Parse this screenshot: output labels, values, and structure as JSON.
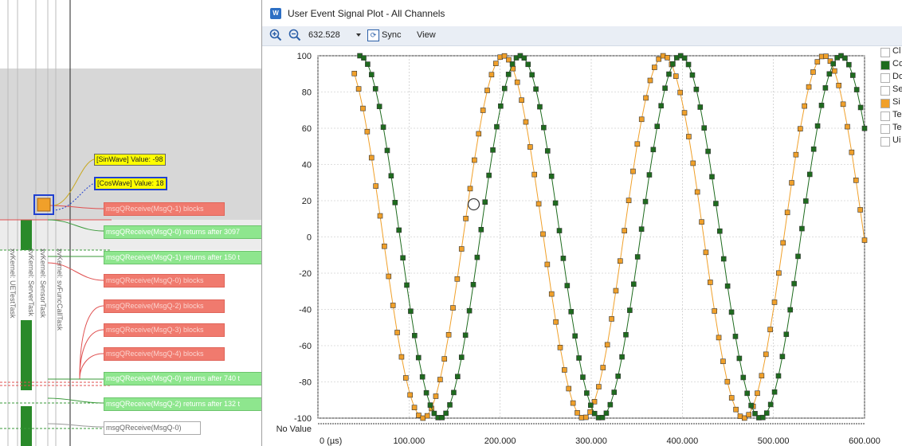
{
  "window": {
    "title": "User Event Signal Plot - All Channels",
    "icon": "window-app-icon"
  },
  "toolbar": {
    "zoom_value": "632.528",
    "sync_label": "Sync",
    "view_label": "View"
  },
  "legend": [
    {
      "label": "Cl",
      "color": "#ffffff"
    },
    {
      "label": "Co",
      "color": "#1e6b1e"
    },
    {
      "label": "Do",
      "color": "#ffffff"
    },
    {
      "label": "Se",
      "color": "#ffffff"
    },
    {
      "label": "Si",
      "color": "#f0a02a"
    },
    {
      "label": "Te",
      "color": "#ffffff"
    },
    {
      "label": "Te",
      "color": "#ffffff"
    },
    {
      "label": "Ui",
      "color": "#ffffff"
    }
  ],
  "timeline": {
    "task_labels": [
      "xvKernel: UETestTask",
      "xvKernel: ServerTask",
      "xvKernel: SensorTask",
      "xvKernel: svFuncCallTask"
    ],
    "value_labels": [
      "[SinWave] Value: -98",
      "[CosWave] Value: 18"
    ],
    "events": [
      {
        "text": "msgQReceive(MsgQ-1) blocks",
        "kind": "red"
      },
      {
        "text": "msgQReceive(MsgQ-0) returns after 3097",
        "kind": "green"
      },
      {
        "text": "msgQReceive(MsgQ-1) returns after 150 t",
        "kind": "green"
      },
      {
        "text": "msgQReceive(MsgQ-0) blocks",
        "kind": "red"
      },
      {
        "text": "msgQReceive(MsgQ-2) blocks",
        "kind": "red"
      },
      {
        "text": "msgQReceive(MsgQ-3) blocks",
        "kind": "red"
      },
      {
        "text": "msgQReceive(MsgQ-4) blocks",
        "kind": "red"
      },
      {
        "text": "msgQReceive(MsgQ-0) returns after 740 t",
        "kind": "green"
      },
      {
        "text": "msgQReceive(MsgQ-2) returns after 132 t",
        "kind": "green"
      },
      {
        "text": "msgQReceive(MsgQ-0)",
        "kind": "white"
      }
    ]
  },
  "chart_data": {
    "type": "line",
    "xlabel": "",
    "ylabel": "",
    "no_value_label": "No Value",
    "xlim": [
      0,
      600000
    ],
    "ylim": [
      -100,
      100
    ],
    "x_ticks": [
      "0 (µs)",
      "100.000",
      "200.000",
      "300.000",
      "400.000",
      "500.000",
      "600.000"
    ],
    "y_ticks": [
      100,
      80,
      60,
      40,
      20,
      0,
      -20,
      -40,
      -60,
      -80,
      -100
    ],
    "grid": true,
    "legend_position": "right",
    "series": [
      {
        "name": "SinWave",
        "color": "#f0a02a",
        "marker": "square",
        "function": "100*sin(2*pi*(x+16500)/176000)",
        "x_start": 40000,
        "x_end": 600000,
        "points": 120
      },
      {
        "name": "CosWave",
        "color": "#1e6b1e",
        "marker": "square",
        "function": "100*cos(2*pi*(x-46000)/176000)",
        "x_start": 46000,
        "x_end": 600000,
        "points": 130
      }
    ],
    "highlight": {
      "x": 171000,
      "y": 18
    }
  }
}
